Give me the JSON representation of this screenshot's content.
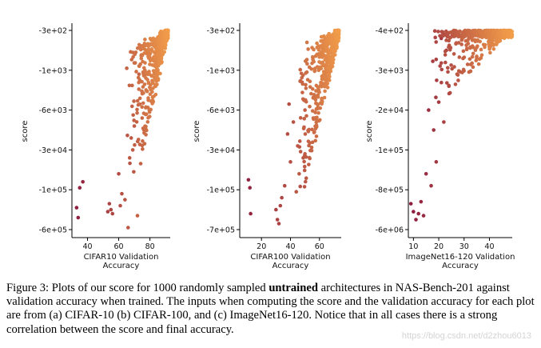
{
  "chart_data": [
    {
      "type": "scatter",
      "title": "",
      "xlabel": "CIFAR10 Validation\nAccuracy",
      "ylabel": "score",
      "xticks": [
        40,
        60,
        80
      ],
      "xlim": [
        30,
        93
      ],
      "yticks": [
        "-3e+02",
        "-1e+03",
        "-6e+03",
        "-3e+04",
        "-1e+05",
        "-6e+05"
      ],
      "color_low": "#8b1a3f",
      "color_high": "#f4a04a",
      "points": [
        {
          "x": 33,
          "y": 4.45
        },
        {
          "x": 34,
          "y": 4.7
        },
        {
          "x": 35,
          "y": 3.95
        },
        {
          "x": 37,
          "y": 3.8
        },
        {
          "x": 53,
          "y": 4.55
        },
        {
          "x": 54,
          "y": 4.35
        },
        {
          "x": 55,
          "y": 4.5
        },
        {
          "x": 56,
          "y": 4.6
        },
        {
          "x": 60,
          "y": 3.6
        },
        {
          "x": 61,
          "y": 4.4
        },
        {
          "x": 62,
          "y": 4.1
        },
        {
          "x": 64,
          "y": 4.25
        },
        {
          "x": 66,
          "y": 4.95
        },
        {
          "x": 67,
          "y": 3.2
        },
        {
          "x": 68,
          "y": 2.7
        },
        {
          "x": 69,
          "y": 3.0
        },
        {
          "x": 70,
          "y": 2.4
        },
        {
          "x": 72,
          "y": 4.65
        },
        {
          "x": 73,
          "y": 1.1
        },
        {
          "x": 75,
          "y": 2.2
        }
      ]
    },
    {
      "type": "scatter",
      "title": "",
      "xlabel": "CIFAR100 Validation\nAccuracy",
      "ylabel": "score",
      "xticks": [
        20,
        40,
        60
      ],
      "xlim": [
        5,
        75
      ],
      "yticks": [
        "-3e+02",
        "-1e+03",
        "-6e+03",
        "-3e+04",
        "-1e+05",
        "-7e+05"
      ],
      "color_low": "#8b1a3f",
      "color_high": "#f4a04a",
      "points": [
        {
          "x": 11,
          "y": 3.75
        },
        {
          "x": 12,
          "y": 3.95
        },
        {
          "x": 12.5,
          "y": 4.6
        },
        {
          "x": 30,
          "y": 4.5
        },
        {
          "x": 31,
          "y": 4.75
        },
        {
          "x": 32,
          "y": 4.85
        },
        {
          "x": 33,
          "y": 4.4
        },
        {
          "x": 34,
          "y": 4.2
        },
        {
          "x": 36,
          "y": 3.9
        },
        {
          "x": 38,
          "y": 2.6
        },
        {
          "x": 39,
          "y": 1.85
        },
        {
          "x": 40,
          "y": 3.3
        },
        {
          "x": 42,
          "y": 2.3
        },
        {
          "x": 44,
          "y": 4.05
        },
        {
          "x": 45,
          "y": 2.9
        },
        {
          "x": 46,
          "y": 3.6
        },
        {
          "x": 48,
          "y": 1.3
        },
        {
          "x": 50,
          "y": 2.0
        }
      ]
    },
    {
      "type": "scatter",
      "title": "",
      "xlabel": "ImageNet16-120 Validation\nAccuracy",
      "ylabel": "score",
      "xticks": [
        10,
        20,
        30,
        40
      ],
      "xlim": [
        8,
        49
      ],
      "yticks": [
        "-4e+02",
        "-3e+03",
        "-2e+04",
        "-1e+05",
        "-8e+05",
        "-6e+06"
      ],
      "color_low": "#8b1a3f",
      "color_high": "#f4a04a",
      "points": [
        {
          "x": 9,
          "y": 4.35
        },
        {
          "x": 10,
          "y": 4.55
        },
        {
          "x": 11,
          "y": 4.75
        },
        {
          "x": 12,
          "y": 4.6
        },
        {
          "x": 13,
          "y": 4.3
        },
        {
          "x": 14,
          "y": 4.65
        },
        {
          "x": 15,
          "y": 3.6
        },
        {
          "x": 16,
          "y": 2.0
        },
        {
          "x": 17,
          "y": 3.9
        },
        {
          "x": 18,
          "y": 2.5
        },
        {
          "x": 19,
          "y": 3.3
        },
        {
          "x": 20,
          "y": 1.8
        },
        {
          "x": 21,
          "y": 0.2
        },
        {
          "x": 22,
          "y": 2.3
        },
        {
          "x": 23,
          "y": 0.5
        },
        {
          "x": 24,
          "y": 1.4
        }
      ]
    }
  ],
  "caption": {
    "prefix": "Figure 3: Plots of our score for 1000 randomly sampled ",
    "bold": "untrained",
    "suffix": " architectures in NAS-Bench-201 against validation accuracy when trained. The inputs when computing the score and the validation accuracy for each plot are from (a) CIFAR-10 (b) CIFAR-100, and (c) ImageNet16-120. Notice that in all cases there is a strong correlation between the score and final accuracy."
  },
  "watermark": "https://blog.csdn.net/d2zhou6013"
}
